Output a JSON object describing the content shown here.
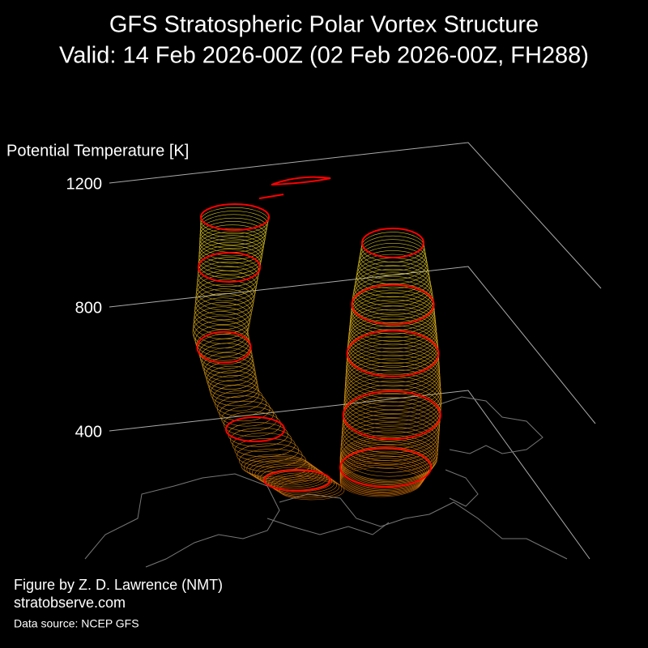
{
  "chart_data": {
    "type": "3d-vortex",
    "title": "GFS Stratospheric Polar Vortex Structure",
    "subtitle": "Valid: 14 Feb 2026-00Z  (02 Feb 2026-00Z, FH288)",
    "zlabel": "Potential Temperature [K]",
    "zticks": [
      400,
      800,
      1200
    ],
    "credit": "Figure by Z. D. Lawrence (NMT)",
    "website": "stratobserve.com",
    "source": "Data source: NCEP GFS"
  }
}
